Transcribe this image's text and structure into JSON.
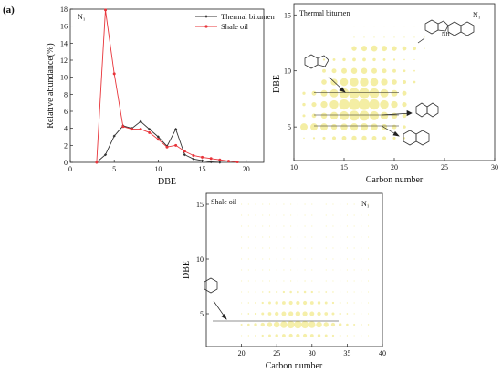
{
  "figure": {
    "panel_label": "(a)"
  },
  "chart_data": [
    {
      "type": "line",
      "annotation": "N₁",
      "xlabel": "DBE",
      "ylabel": "Relative abundance(%)",
      "xlim": [
        0,
        22
      ],
      "ylim": [
        0,
        18
      ],
      "xticks": [
        0,
        5,
        10,
        15,
        20
      ],
      "yticks": [
        0,
        2,
        4,
        6,
        8,
        10,
        12,
        14,
        16,
        18
      ],
      "legend_position": "top-right",
      "series": [
        {
          "name": "Thermal bitumen",
          "color": "#333333",
          "x": [
            3,
            4,
            5,
            6,
            7,
            8,
            9,
            10,
            11,
            12,
            13,
            14,
            15,
            16,
            17
          ],
          "y": [
            0,
            0.9,
            3.1,
            4.3,
            4.0,
            4.8,
            3.9,
            3.0,
            1.9,
            3.9,
            0.9,
            0.4,
            0.2,
            0.05,
            0
          ]
        },
        {
          "name": "Shale oil",
          "color": "#e8343a",
          "x": [
            3,
            4,
            5,
            6,
            7,
            8,
            9,
            10,
            11,
            12,
            13,
            14,
            15,
            16,
            17,
            18,
            19
          ],
          "y": [
            0,
            17.9,
            10.4,
            4.2,
            3.9,
            3.9,
            3.5,
            2.7,
            1.8,
            2.0,
            1.3,
            0.8,
            0.6,
            0.45,
            0.3,
            0.15,
            0.05
          ]
        }
      ]
    },
    {
      "type": "scatter",
      "title": "Thermal bitumen",
      "annotation": "N₁",
      "xlabel": "Carbon number",
      "ylabel": "DBE",
      "xlim": [
        10,
        30
      ],
      "ylim": [
        2,
        16
      ],
      "xticks": [
        10,
        15,
        20,
        25,
        30
      ],
      "yticks": [
        5,
        10,
        15
      ],
      "marker_color": "#f3ec9a"
    },
    {
      "type": "scatter",
      "title": "Shale oil",
      "annotation": "N₁",
      "xlabel": "Carbon number",
      "ylabel": "DBE",
      "xlim": [
        15,
        40
      ],
      "ylim": [
        2,
        16
      ],
      "xticks": [
        20,
        25,
        30,
        35,
        40
      ],
      "yticks": [
        5,
        10,
        15
      ],
      "marker_color": "#f3ec9a"
    }
  ]
}
